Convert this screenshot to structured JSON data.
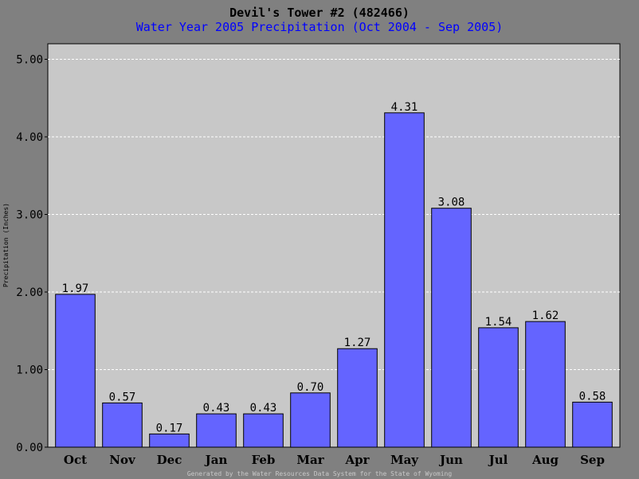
{
  "chart_data": {
    "type": "bar",
    "title": "Devil's Tower #2 (482466)",
    "subtitle": "Water Year 2005 Precipitation (Oct 2004 - Sep 2005)",
    "ylabel": "Precipitation (Inches)",
    "xlabel": "",
    "categories": [
      "Oct",
      "Nov",
      "Dec",
      "Jan",
      "Feb",
      "Mar",
      "Apr",
      "May",
      "Jun",
      "Jul",
      "Aug",
      "Sep"
    ],
    "values": [
      1.97,
      0.57,
      0.17,
      0.43,
      0.43,
      0.7,
      1.27,
      4.31,
      3.08,
      1.54,
      1.62,
      0.58
    ],
    "value_labels": [
      "1.97",
      "0.57",
      "0.17",
      "0.43",
      "0.43",
      "0.70",
      "1.27",
      "4.31",
      "3.08",
      "1.54",
      "1.62",
      "0.58"
    ],
    "ylim": [
      0,
      5.2
    ],
    "yticks": [
      0,
      1,
      2,
      3,
      4,
      5
    ],
    "ytick_labels": [
      "0.00",
      "1.00",
      "2.00",
      "3.00",
      "4.00",
      "5.00"
    ],
    "grid": true,
    "colors": {
      "bar": "#6464ff",
      "bar_outline": "#000000",
      "plot_background": "#c8c8c8",
      "page_background": "#808080",
      "grid": "#ffffff",
      "subtitle": "#0000ff",
      "footer": "#c8c8c8"
    }
  },
  "footer": "Generated by the Water Resources Data System for the State of Wyoming"
}
